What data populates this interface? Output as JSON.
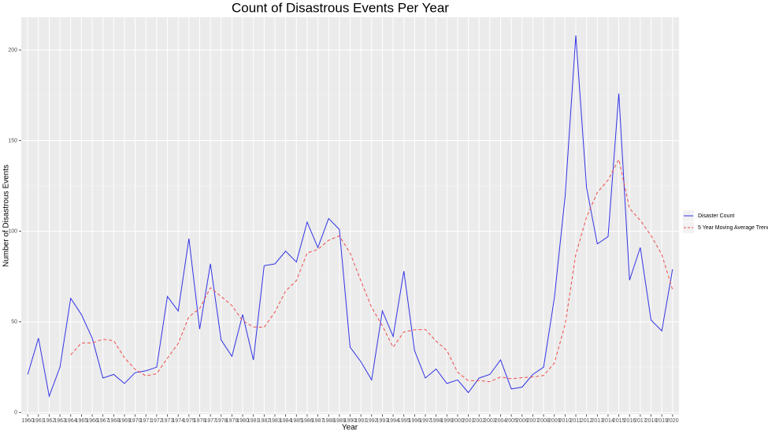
{
  "chart_data": {
    "type": "line",
    "title": "Count of Disastrous Events Per Year",
    "x_label": "Year",
    "y_label": "Number of Disastrous Events",
    "x": [
      1960,
      1961,
      1962,
      1963,
      1964,
      1965,
      1966,
      1967,
      1968,
      1969,
      1970,
      1971,
      1972,
      1973,
      1974,
      1975,
      1976,
      1977,
      1978,
      1979,
      1980,
      1981,
      1982,
      1983,
      1984,
      1985,
      1986,
      1987,
      1988,
      1989,
      1990,
      1991,
      1992,
      1993,
      1994,
      1995,
      1996,
      1997,
      1998,
      1999,
      2000,
      2001,
      2002,
      2003,
      2004,
      2005,
      2006,
      2007,
      2008,
      2009,
      2010,
      2011,
      2012,
      2013,
      2014,
      2015,
      2016,
      2017,
      2018,
      2019,
      2020
    ],
    "series": [
      {
        "name": "Disaster Count",
        "color": "#3333e6",
        "dashed": false,
        "values": [
          21,
          41,
          9,
          25,
          63,
          54,
          41,
          19,
          21,
          16,
          22,
          23,
          25,
          64,
          56,
          96,
          46,
          82,
          40,
          31,
          54,
          29,
          81,
          82,
          89,
          83,
          105,
          91,
          107,
          101,
          36,
          28,
          18,
          56,
          42,
          78,
          34,
          19,
          24,
          16,
          18,
          11,
          19,
          21,
          29,
          13,
          14,
          21,
          25,
          63,
          119,
          208,
          124,
          93,
          97,
          176,
          73,
          91,
          51,
          45,
          79
        ]
      },
      {
        "name": "5 Year Moving Average Trend",
        "color": "#f04b4b",
        "dashed": true,
        "values": [
          null,
          null,
          null,
          null,
          31.8,
          38.4,
          38.4,
          40.4,
          39.6,
          30.2,
          23.8,
          20.2,
          21.4,
          30,
          38,
          52.8,
          57.4,
          68.8,
          64,
          59,
          50.6,
          47.2,
          47,
          55.4,
          67,
          72.8,
          88,
          90,
          95,
          97.4,
          88,
          72.6,
          58,
          47.8,
          36,
          44.4,
          45.6,
          45.8,
          39.4,
          34.2,
          22.2,
          17.6,
          17.6,
          17,
          19.6,
          18.6,
          19.2,
          19.6,
          20.4,
          27.2,
          48.4,
          87.2,
          107.8,
          121.4,
          128.2,
          139.6,
          112.6,
          106,
          97.6,
          87.2,
          67.8
        ]
      }
    ],
    "xlim": [
      1959.4,
      2020.6
    ],
    "xticks": [
      1960,
      1961,
      1962,
      1963,
      1964,
      1965,
      1966,
      1967,
      1968,
      1969,
      1970,
      1971,
      1972,
      1973,
      1974,
      1975,
      1976,
      1977,
      1978,
      1979,
      1980,
      1981,
      1982,
      1983,
      1984,
      1985,
      1986,
      1987,
      1988,
      1989,
      1990,
      1991,
      1992,
      1993,
      1994,
      1995,
      1996,
      1997,
      1998,
      1999,
      2000,
      2001,
      2002,
      2003,
      2004,
      2005,
      2006,
      2007,
      2008,
      2009,
      2010,
      2011,
      2012,
      2013,
      2014,
      2015,
      2016,
      2017,
      2018,
      2019,
      2020
    ],
    "ylim": [
      -1,
      218
    ],
    "yticks": [
      0,
      50,
      100,
      150,
      200
    ],
    "grid": true,
    "legend": "right"
  }
}
